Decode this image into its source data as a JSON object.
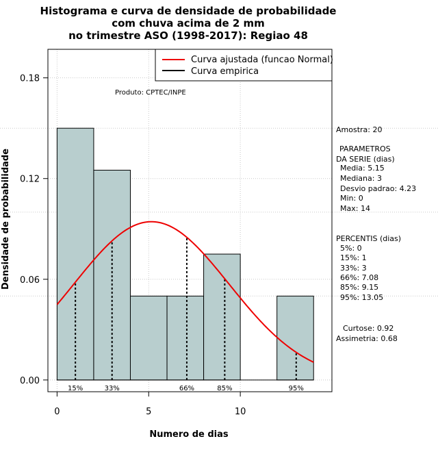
{
  "chart_data": {
    "type": "bar",
    "title_lines": [
      "Histograma e curva de densidade de probabilidade",
      "com chuva acima de 2 mm",
      "no trimestre ASO (1998-2017): Regiao 48"
    ],
    "xlabel": "Numero de dias",
    "ylabel": "Densidade de probabilidade",
    "xlim": [
      -0.5,
      15
    ],
    "ylim": [
      -0.007,
      0.197
    ],
    "x_ticks": [
      "0",
      "5",
      "10"
    ],
    "x_tick_values": [
      0,
      5,
      10
    ],
    "y_ticks": [
      "0.00",
      "0.06",
      "0.12",
      "0.18"
    ],
    "y_tick_values": [
      0,
      0.06,
      0.12,
      0.18
    ],
    "grid": true,
    "legend_position": "top-right",
    "histogram": {
      "bin_width": 2,
      "bin_edges": [
        0,
        2,
        4,
        6,
        8,
        10,
        12,
        14
      ],
      "densities": [
        0.15,
        0.125,
        0.05,
        0.05,
        0.075,
        0,
        0.05
      ],
      "fill_color": "#b8cece"
    },
    "normal_curve": {
      "name": "Curva ajustada (funcao Normal)",
      "mean": 5.15,
      "sd": 4.23,
      "x_range": [
        0,
        14
      ],
      "color": "#ee0000"
    },
    "empirical_curve": {
      "name": "Curva empirica",
      "color": "#000000"
    },
    "percentile_markers": [
      {
        "label": "15%",
        "x": 1
      },
      {
        "label": "33%",
        "x": 3
      },
      {
        "label": "66%",
        "x": 7.08
      },
      {
        "label": "85%",
        "x": 9.15
      },
      {
        "label": "95%",
        "x": 13.05
      }
    ],
    "annotation_product": "Produto: CPTEC/INPE"
  },
  "side_panel": {
    "amostra": "Amostra: 20",
    "params_title_1": "PARAMETROS",
    "params_title_2": "DA SERIE (dias)",
    "media": "Media: 5.15",
    "mediana": "Mediana: 3",
    "desvio": "Desvio padrao: 4.23",
    "min": "Min: 0",
    "max": "Max: 14",
    "percentis_title": "PERCENTIS (dias)",
    "p5": "5%: 0",
    "p15": "15%: 1",
    "p33": "33%: 3",
    "p66": "66%: 7.08",
    "p85": "85%: 9.15",
    "p95": "95%: 13.05",
    "curtose": "Curtose: 0.92",
    "assimetria": "Assimetria: 0.68"
  }
}
